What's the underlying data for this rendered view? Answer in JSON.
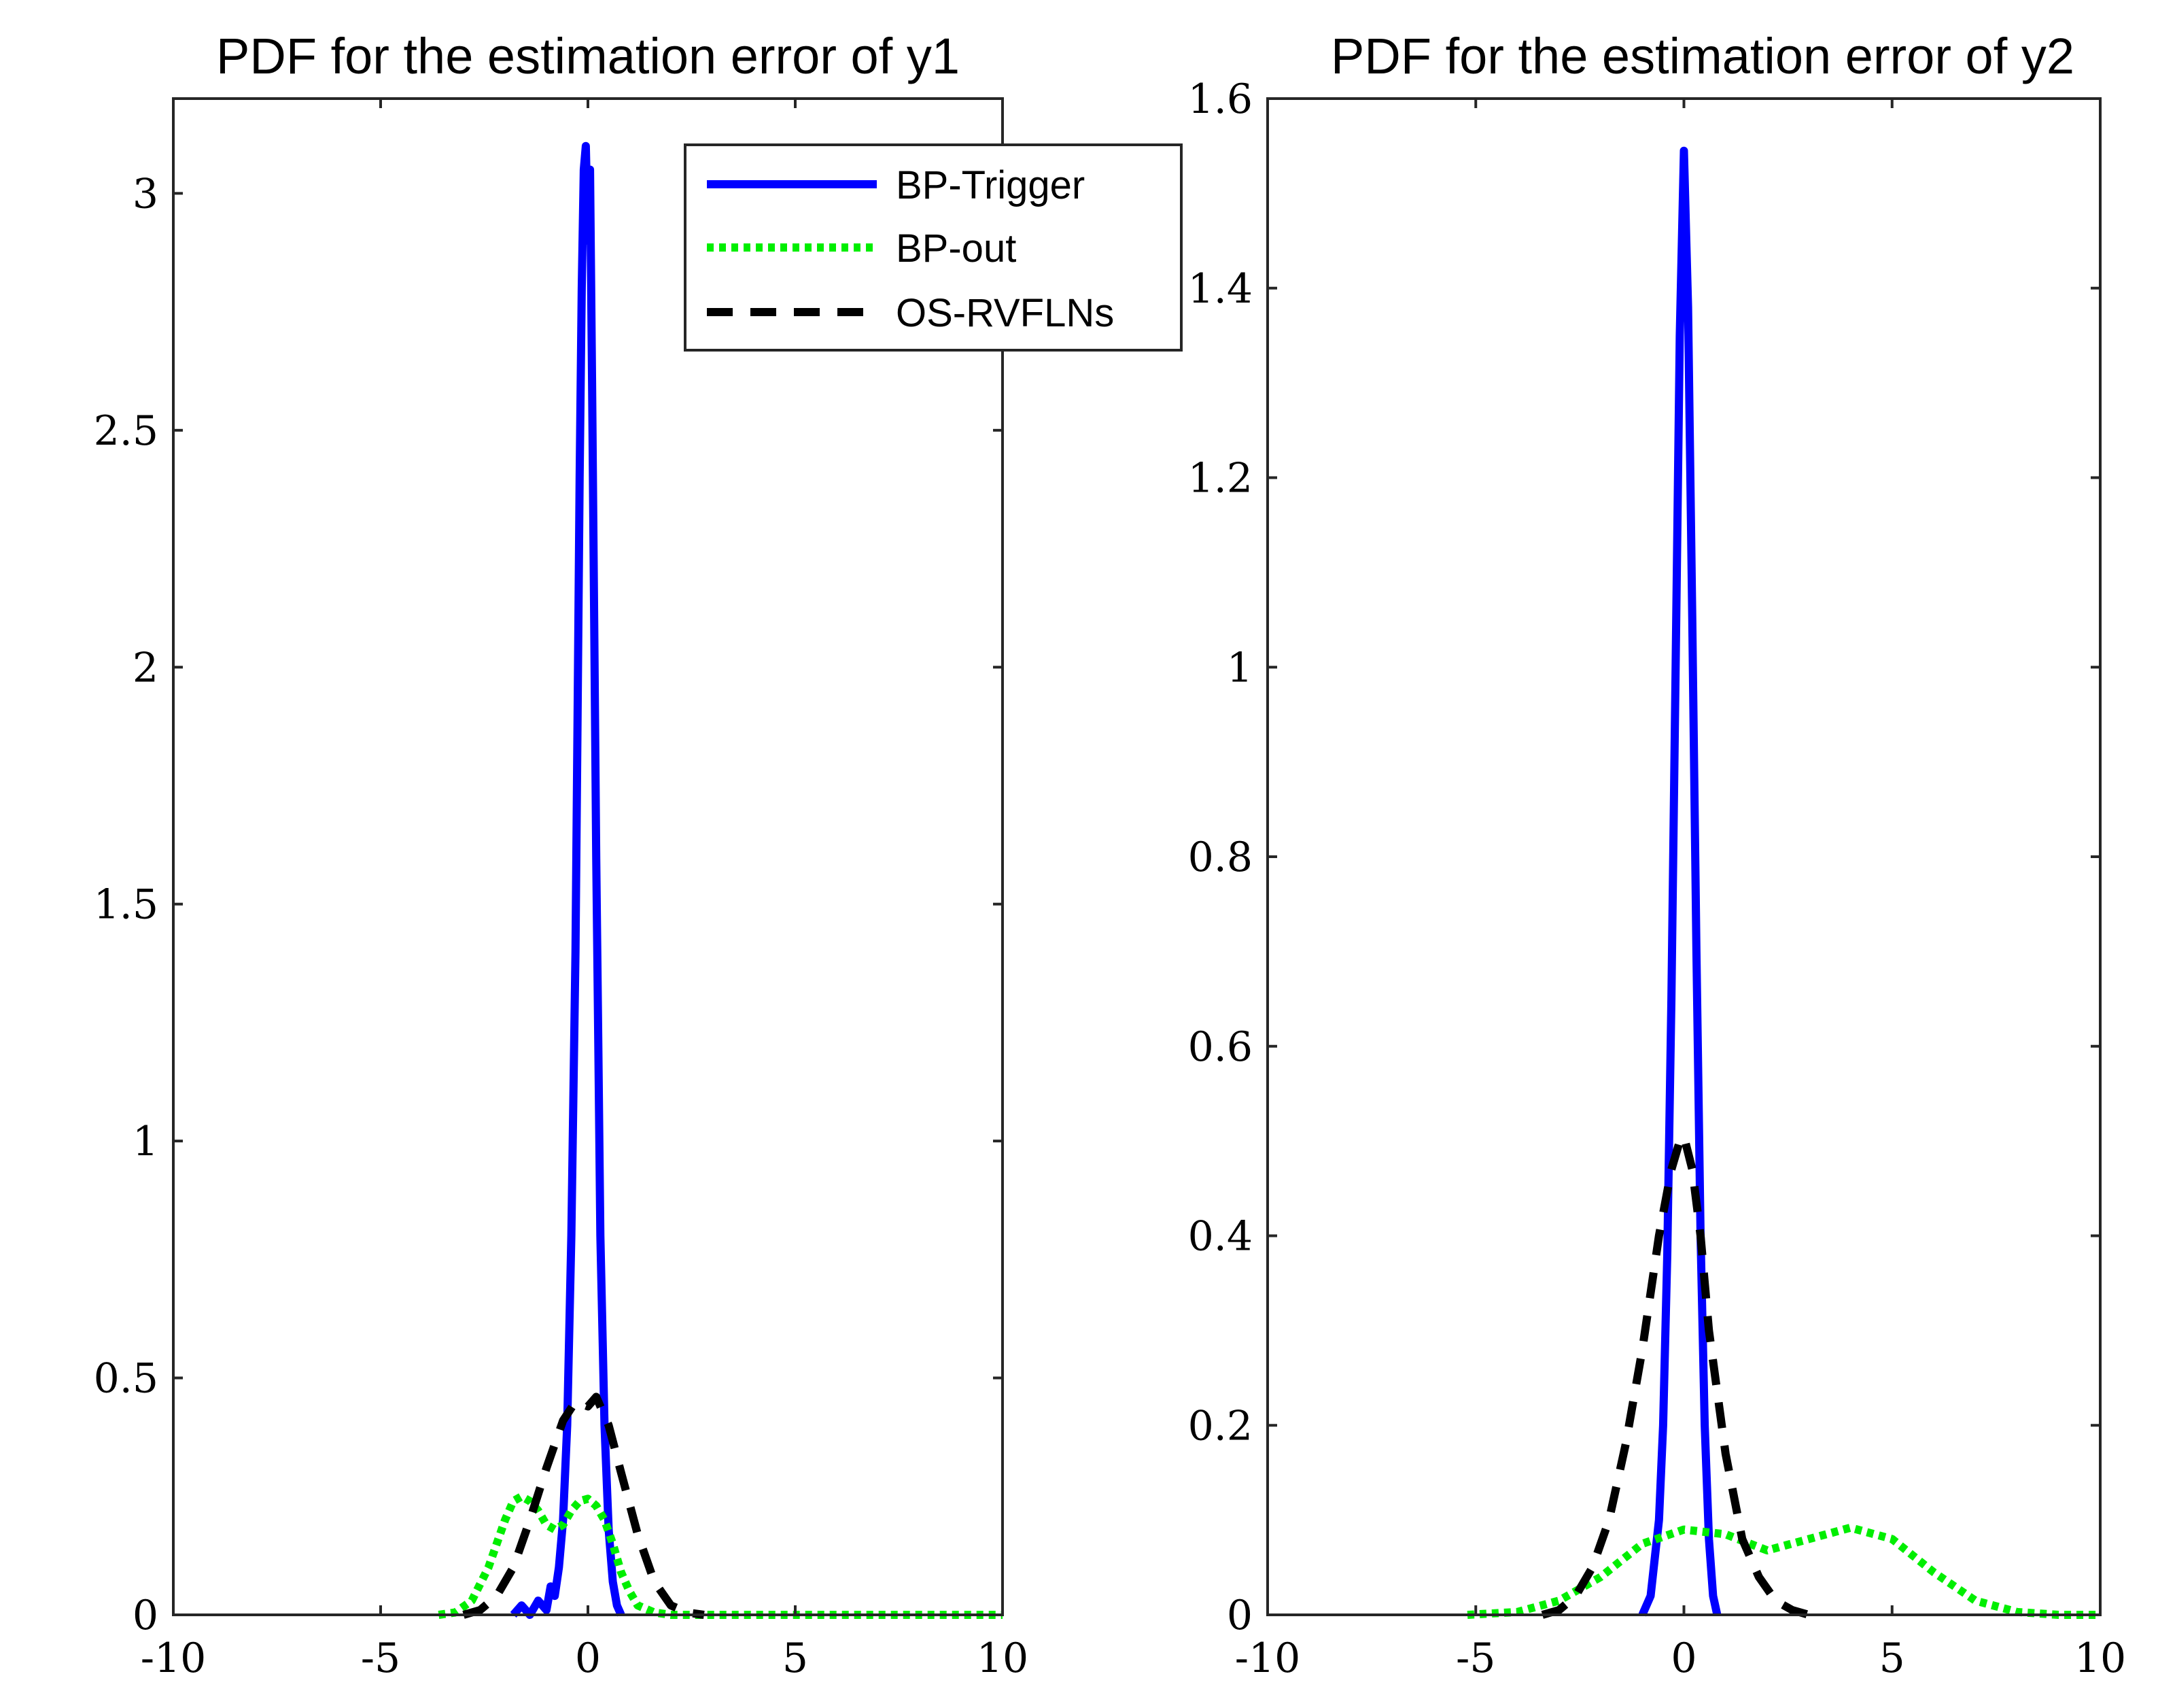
{
  "chart_data": [
    {
      "type": "line",
      "title": "PDF for the estimation error of y1",
      "xlabel": "",
      "ylabel": "",
      "xlim": [
        -10,
        10
      ],
      "ylim": [
        0,
        3.2
      ],
      "xticks": [
        -10,
        -5,
        0,
        5,
        10
      ],
      "xtick_labels": [
        "-10",
        "-5",
        "0",
        "5",
        "10"
      ],
      "yticks": [
        0,
        0.5,
        1,
        1.5,
        2,
        2.5,
        3
      ],
      "ytick_labels": [
        "0",
        "0.5",
        "1",
        "1.5",
        "2",
        "2.5",
        "3"
      ],
      "grid": false,
      "legend": {
        "location": "top-right",
        "entries": [
          "BP-Trigger",
          "BP-out",
          "OS-RVFLNs"
        ]
      },
      "series": [
        {
          "name": "BP-Trigger",
          "color": "#0000ff",
          "style": "solid",
          "x": [
            -1.8,
            -1.6,
            -1.4,
            -1.2,
            -1.0,
            -0.9,
            -0.8,
            -0.7,
            -0.6,
            -0.5,
            -0.4,
            -0.3,
            -0.25,
            -0.2,
            -0.15,
            -0.1,
            -0.05,
            0.0,
            0.05,
            0.1,
            0.15,
            0.2,
            0.25,
            0.3,
            0.4,
            0.5,
            0.6,
            0.7,
            0.8
          ],
          "y": [
            0.0,
            0.02,
            0.0,
            0.03,
            0.01,
            0.06,
            0.04,
            0.1,
            0.2,
            0.4,
            0.8,
            1.4,
            1.9,
            2.4,
            2.8,
            3.05,
            3.1,
            2.9,
            3.05,
            2.6,
            2.1,
            1.6,
            1.2,
            0.8,
            0.4,
            0.18,
            0.07,
            0.02,
            0.0
          ]
        },
        {
          "name": "BP-out",
          "color": "#00ee00",
          "style": "dotted",
          "x": [
            -3.6,
            -3.2,
            -2.8,
            -2.4,
            -2.0,
            -1.8,
            -1.6,
            -1.4,
            -1.2,
            -1.0,
            -0.8,
            -0.6,
            -0.4,
            -0.2,
            0.0,
            0.2,
            0.4,
            0.6,
            0.8,
            1.0,
            1.2,
            1.6,
            2.0,
            3.0,
            5.0,
            7.0,
            10.0
          ],
          "y": [
            0.0,
            0.005,
            0.03,
            0.1,
            0.2,
            0.24,
            0.25,
            0.24,
            0.22,
            0.19,
            0.18,
            0.19,
            0.22,
            0.24,
            0.245,
            0.23,
            0.2,
            0.15,
            0.09,
            0.05,
            0.02,
            0.005,
            0.0,
            0.0,
            0.0,
            0.0,
            0.0
          ]
        },
        {
          "name": "OS-RVFLNs",
          "color": "#000000",
          "style": "dashed",
          "x": [
            -3.0,
            -2.6,
            -2.2,
            -1.8,
            -1.4,
            -1.0,
            -0.6,
            -0.3,
            0.0,
            0.2,
            0.5,
            0.8,
            1.2,
            1.6,
            2.0,
            2.4,
            2.8
          ],
          "y": [
            0.0,
            0.01,
            0.04,
            0.1,
            0.2,
            0.31,
            0.41,
            0.45,
            0.44,
            0.46,
            0.4,
            0.3,
            0.17,
            0.07,
            0.02,
            0.005,
            0.0
          ]
        }
      ]
    },
    {
      "type": "line",
      "title": "PDF for the estimation error of y2",
      "xlabel": "",
      "ylabel": "",
      "xlim": [
        -10,
        10
      ],
      "ylim": [
        0,
        1.6
      ],
      "xticks": [
        -10,
        -5,
        0,
        5,
        10
      ],
      "xtick_labels": [
        "-10",
        "-5",
        "0",
        "5",
        "10"
      ],
      "yticks": [
        0,
        0.2,
        0.4,
        0.6,
        0.8,
        1,
        1.2,
        1.4,
        1.6
      ],
      "ytick_labels": [
        "0",
        "0.2",
        "0.4",
        "0.6",
        "0.8",
        "1",
        "1.2",
        "1.4",
        "1.6"
      ],
      "grid": false,
      "series": [
        {
          "name": "BP-Trigger",
          "color": "#0000ff",
          "style": "solid",
          "x": [
            -1.0,
            -0.8,
            -0.6,
            -0.5,
            -0.4,
            -0.3,
            -0.2,
            -0.1,
            0.0,
            0.1,
            0.2,
            0.3,
            0.4,
            0.5,
            0.6,
            0.7,
            0.8
          ],
          "y": [
            0.0,
            0.02,
            0.1,
            0.2,
            0.38,
            0.65,
            1.0,
            1.35,
            1.545,
            1.38,
            1.05,
            0.7,
            0.4,
            0.2,
            0.08,
            0.02,
            0.0
          ]
        },
        {
          "name": "BP-out",
          "color": "#00ee00",
          "style": "dotted",
          "x": [
            -5.2,
            -4.0,
            -3.0,
            -2.0,
            -1.0,
            0.0,
            1.0,
            2.0,
            3.0,
            4.0,
            5.0,
            6.0,
            7.0,
            8.0,
            9.0,
            10.0
          ],
          "y": [
            0.0,
            0.003,
            0.015,
            0.04,
            0.075,
            0.09,
            0.085,
            0.068,
            0.08,
            0.092,
            0.08,
            0.045,
            0.015,
            0.003,
            0.0,
            0.0
          ]
        },
        {
          "name": "OS-RVFLNs",
          "color": "#000000",
          "style": "dashed",
          "x": [
            -3.4,
            -3.0,
            -2.6,
            -2.2,
            -1.8,
            -1.4,
            -1.0,
            -0.6,
            -0.3,
            -0.1,
            0.0,
            0.2,
            0.4,
            0.6,
            1.0,
            1.4,
            1.8,
            2.2,
            2.6,
            3.0
          ],
          "y": [
            0.0,
            0.005,
            0.02,
            0.05,
            0.1,
            0.18,
            0.28,
            0.4,
            0.47,
            0.5,
            0.505,
            0.47,
            0.4,
            0.3,
            0.17,
            0.08,
            0.04,
            0.015,
            0.005,
            0.0
          ]
        }
      ]
    }
  ]
}
